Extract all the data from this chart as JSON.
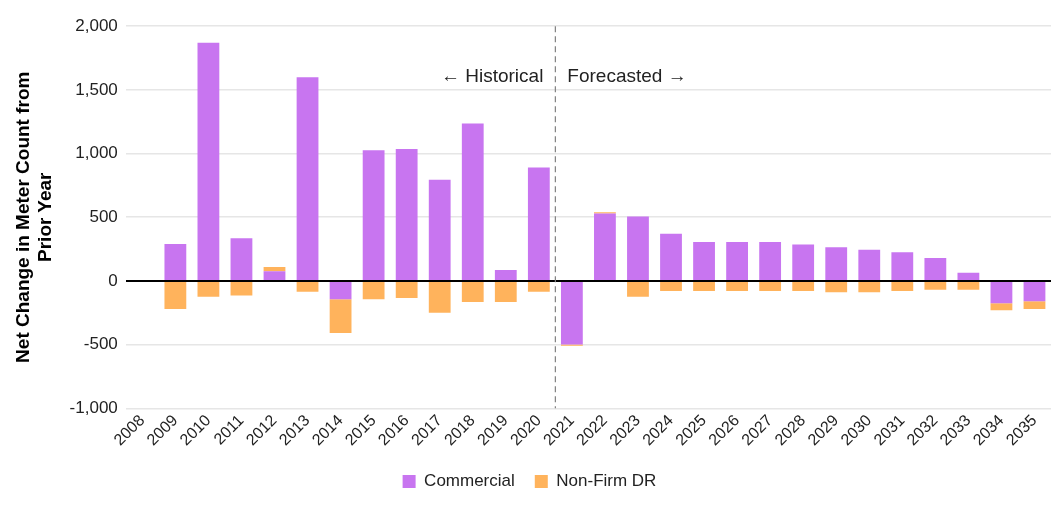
{
  "chart_data": {
    "type": "bar",
    "stacked": true,
    "ylabel": "Net Change in Meter Count from Prior Year",
    "categories": [
      "2008",
      "2009",
      "2010",
      "2011",
      "2012",
      "2013",
      "2014",
      "2015",
      "2016",
      "2017",
      "2018",
      "2019",
      "2020",
      "2021",
      "2022",
      "2023",
      "2024",
      "2025",
      "2026",
      "2027",
      "2028",
      "2029",
      "2030",
      "2031",
      "2032",
      "2033",
      "2034",
      "2035"
    ],
    "series": [
      {
        "name": "Commercial",
        "color": "#c875f0",
        "values": [
          null,
          290,
          1870,
          335,
          75,
          1600,
          -145,
          1025,
          1035,
          795,
          1235,
          85,
          890,
          -500,
          530,
          505,
          370,
          305,
          305,
          305,
          285,
          265,
          245,
          225,
          180,
          65,
          -175,
          -160
        ]
      },
      {
        "name": "Non-Firm DR",
        "color": "#ffb35c",
        "values": [
          null,
          -220,
          -125,
          -115,
          35,
          -85,
          -265,
          -145,
          -135,
          -250,
          -165,
          -165,
          -85,
          -10,
          10,
          -125,
          -80,
          -80,
          -80,
          -80,
          -80,
          -90,
          -90,
          -80,
          -70,
          -70,
          -55,
          -60
        ]
      }
    ],
    "ylim": [
      -1000,
      2000
    ],
    "yticks": [
      {
        "value": -1000,
        "label": "-1,000"
      },
      -500,
      0,
      500,
      {
        "value": 1000,
        "label": "1,000"
      },
      {
        "value": 1500,
        "label": "1,500"
      },
      {
        "value": 2000,
        "label": "2,000"
      }
    ],
    "grid": "y",
    "legend": "bottom",
    "ref_lines": [
      {
        "axis": "x",
        "value": "2021",
        "color": "#808080",
        "line_style": "dashed"
      }
    ],
    "annotations": [
      "← Historical",
      "Forecasted →"
    ]
  }
}
